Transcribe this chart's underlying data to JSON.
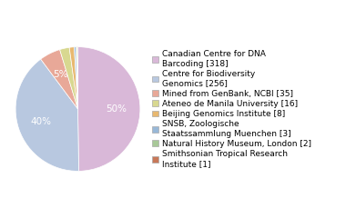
{
  "labels": [
    "Canadian Centre for DNA\nBarcoding [318]",
    "Centre for Biodiversity\nGenomics [256]",
    "Mined from GenBank, NCBI [35]",
    "Ateneo de Manila University [16]",
    "Beijing Genomics Institute [8]",
    "SNSB, Zoologische\nStaatssammlung Muenchen [3]",
    "Natural History Museum, London [2]",
    "Smithsonian Tropical Research\nInstitute [1]"
  ],
  "values": [
    318,
    256,
    35,
    16,
    8,
    3,
    2,
    1
  ],
  "colors": [
    "#d9b8d8",
    "#b8c8e0",
    "#e8a898",
    "#d8d890",
    "#e8b870",
    "#98b8d8",
    "#a8c898",
    "#c87858"
  ],
  "background_color": "#ffffff",
  "legend_fontsize": 6.5,
  "pct_fontsize": 7.5,
  "startangle": 90,
  "wedge_edge_color": "white",
  "pct_color": "white",
  "pct_threshold": 4.5
}
